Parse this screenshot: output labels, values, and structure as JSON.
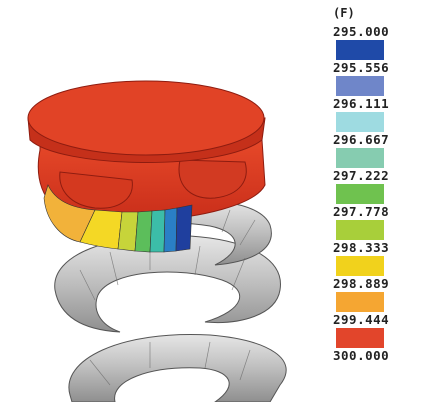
{
  "legend": {
    "unit": "(F)",
    "ticks": [
      "295.000",
      "295.556",
      "296.111",
      "296.667",
      "297.222",
      "297.778",
      "298.333",
      "298.889",
      "299.444",
      "300.000"
    ],
    "colors": [
      "#1f4aa8",
      "#6f86c9",
      "#9edbe1",
      "#86ccb0",
      "#6fc24f",
      "#a8cf3a",
      "#f1d21c",
      "#f5a632",
      "#e2452b"
    ]
  }
}
